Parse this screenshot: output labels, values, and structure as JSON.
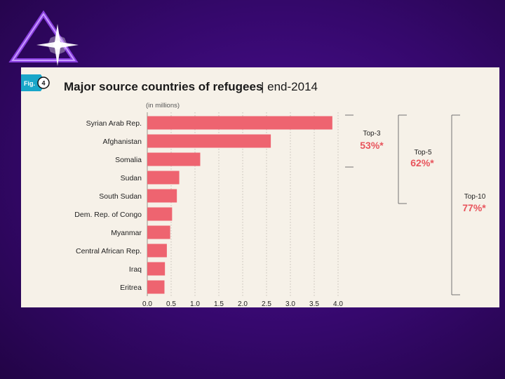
{
  "figure": {
    "tab_label": "Fig.",
    "number": "4",
    "title": "Major source countries of refugees",
    "title_suffix": "| end-2014",
    "units_label": "(in millions)"
  },
  "chart_data": {
    "type": "bar",
    "orientation": "horizontal",
    "title": "Major source countries of refugees | end-2014",
    "xlabel": "(in millions)",
    "ylabel": "",
    "categories": [
      "Syrian Arab Rep.",
      "Afghanistan",
      "Somalia",
      "Sudan",
      "South Sudan",
      "Dem. Rep. of Congo",
      "Myanmar",
      "Central African Rep.",
      "Iraq",
      "Eritrea"
    ],
    "values": [
      3.88,
      2.59,
      1.11,
      0.67,
      0.62,
      0.52,
      0.48,
      0.41,
      0.37,
      0.36
    ],
    "xlim": [
      0,
      4.0
    ],
    "xticks": [
      "0.0",
      "0.5",
      "1.0",
      "1.5",
      "2.0",
      "2.5",
      "3.0",
      "3.5",
      "4.0"
    ],
    "grid": "vertical-dotted",
    "bar_color": "#ee6470",
    "annotations": [
      {
        "label": "Top-3",
        "percent": "53%*",
        "from": 0,
        "to": 2
      },
      {
        "label": "Top-5",
        "percent": "62%*",
        "from": 0,
        "to": 4
      },
      {
        "label": "Top-10",
        "percent": "77%*",
        "from": 0,
        "to": 9
      }
    ]
  },
  "colors": {
    "bar": "#ee6470",
    "accent_text": "#e8545c",
    "panel_bg": "#f6f1e8",
    "fig_tab": "#19a6c9"
  },
  "decor": {
    "logo_icon": "star-burst-triangle-icon"
  }
}
